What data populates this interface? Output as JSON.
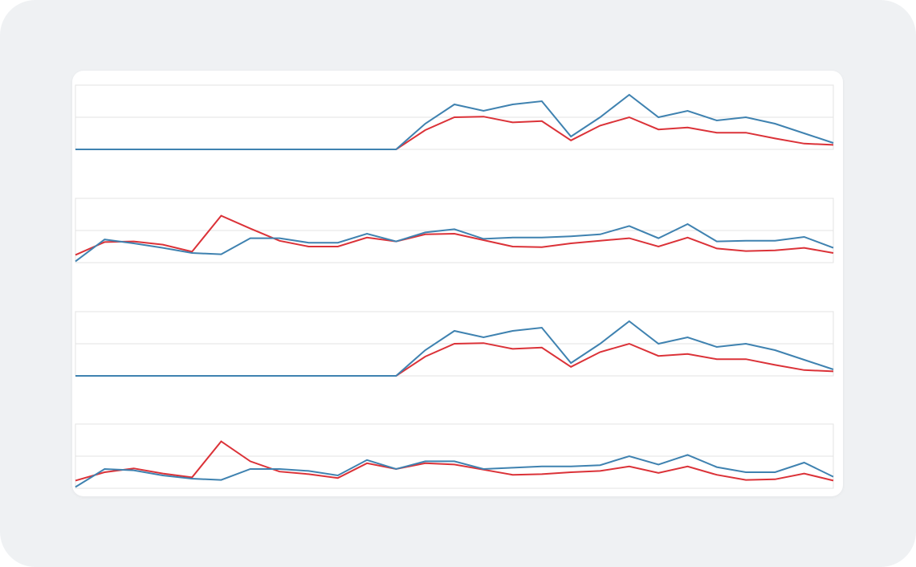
{
  "colors": {
    "series_a": "#3f82b0",
    "series_b": "#db3238",
    "grid": "#e3e3e3",
    "card": "#ffffff",
    "frame": "#eff1f3"
  },
  "chart_data": [
    {
      "type": "line",
      "ylim": [
        0,
        1
      ],
      "grid": true,
      "x": [
        0,
        1,
        2,
        3,
        4,
        5,
        6,
        7,
        8,
        9,
        10,
        11,
        12,
        13,
        14,
        15,
        16,
        17,
        18,
        19,
        20,
        21,
        22,
        23,
        24,
        25,
        26
      ],
      "series": [
        {
          "color": "#3f82b0",
          "values": [
            0,
            0,
            0,
            0,
            0,
            0,
            0,
            0,
            0,
            0,
            0,
            0,
            0.4,
            0.7,
            0.6,
            0.7,
            0.75,
            0.2,
            0.5,
            0.85,
            0.5,
            0.6,
            0.45,
            0.5,
            0.4,
            0.25,
            0.1
          ]
        },
        {
          "color": "#db3238",
          "values": [
            0,
            0,
            0,
            0,
            0,
            0,
            0,
            0,
            0,
            0,
            0,
            0,
            0.3,
            0.5,
            0.51,
            0.42,
            0.44,
            0.14,
            0.37,
            0.5,
            0.31,
            0.34,
            0.26,
            0.26,
            0.17,
            0.09,
            0.07
          ]
        }
      ]
    },
    {
      "type": "line",
      "ylim": [
        0,
        1
      ],
      "grid": true,
      "x": [
        0,
        1,
        2,
        3,
        4,
        5,
        6,
        7,
        8,
        9,
        10,
        11,
        12,
        13,
        14,
        15,
        16,
        17,
        18,
        19,
        20,
        21,
        22,
        23,
        24,
        25,
        26
      ],
      "series": [
        {
          "color": "#3f82b0",
          "values": [
            0.02,
            0.36,
            0.3,
            0.23,
            0.15,
            0.13,
            0.38,
            0.38,
            0.31,
            0.31,
            0.45,
            0.33,
            0.47,
            0.52,
            0.37,
            0.39,
            0.39,
            0.41,
            0.44,
            0.57,
            0.38,
            0.6,
            0.33,
            0.34,
            0.34,
            0.4,
            0.23
          ]
        },
        {
          "color": "#db3238",
          "values": [
            0.12,
            0.32,
            0.33,
            0.28,
            0.17,
            0.73,
            0.53,
            0.34,
            0.25,
            0.25,
            0.39,
            0.33,
            0.44,
            0.45,
            0.35,
            0.25,
            0.24,
            0.3,
            0.34,
            0.38,
            0.25,
            0.39,
            0.22,
            0.18,
            0.19,
            0.23,
            0.15
          ]
        }
      ]
    },
    {
      "type": "line",
      "ylim": [
        0,
        1
      ],
      "grid": true,
      "x": [
        0,
        1,
        2,
        3,
        4,
        5,
        6,
        7,
        8,
        9,
        10,
        11,
        12,
        13,
        14,
        15,
        16,
        17,
        18,
        19,
        20,
        21,
        22,
        23,
        24,
        25,
        26
      ],
      "series": [
        {
          "color": "#3f82b0",
          "values": [
            0,
            0,
            0,
            0,
            0,
            0,
            0,
            0,
            0,
            0,
            0,
            0,
            0.4,
            0.7,
            0.6,
            0.7,
            0.75,
            0.2,
            0.5,
            0.85,
            0.5,
            0.6,
            0.45,
            0.5,
            0.4,
            0.25,
            0.1
          ]
        },
        {
          "color": "#db3238",
          "values": [
            0,
            0,
            0,
            0,
            0,
            0,
            0,
            0,
            0,
            0,
            0,
            0,
            0.3,
            0.5,
            0.51,
            0.42,
            0.44,
            0.14,
            0.37,
            0.5,
            0.31,
            0.34,
            0.26,
            0.26,
            0.17,
            0.09,
            0.07
          ]
        }
      ]
    },
    {
      "type": "line",
      "ylim": [
        0,
        1
      ],
      "grid": true,
      "x": [
        0,
        1,
        2,
        3,
        4,
        5,
        6,
        7,
        8,
        9,
        10,
        11,
        12,
        13,
        14,
        15,
        16,
        17,
        18,
        19,
        20,
        21,
        22,
        23,
        24,
        25,
        26
      ],
      "series": [
        {
          "color": "#3f82b0",
          "values": [
            0.02,
            0.3,
            0.28,
            0.2,
            0.15,
            0.13,
            0.3,
            0.3,
            0.27,
            0.2,
            0.44,
            0.3,
            0.42,
            0.42,
            0.3,
            0.32,
            0.34,
            0.34,
            0.36,
            0.5,
            0.37,
            0.52,
            0.33,
            0.25,
            0.25,
            0.4,
            0.18
          ]
        },
        {
          "color": "#db3238",
          "values": [
            0.12,
            0.25,
            0.31,
            0.23,
            0.17,
            0.73,
            0.42,
            0.26,
            0.22,
            0.16,
            0.39,
            0.3,
            0.39,
            0.37,
            0.29,
            0.21,
            0.22,
            0.25,
            0.27,
            0.34,
            0.24,
            0.34,
            0.21,
            0.13,
            0.14,
            0.23,
            0.12
          ]
        }
      ]
    }
  ]
}
